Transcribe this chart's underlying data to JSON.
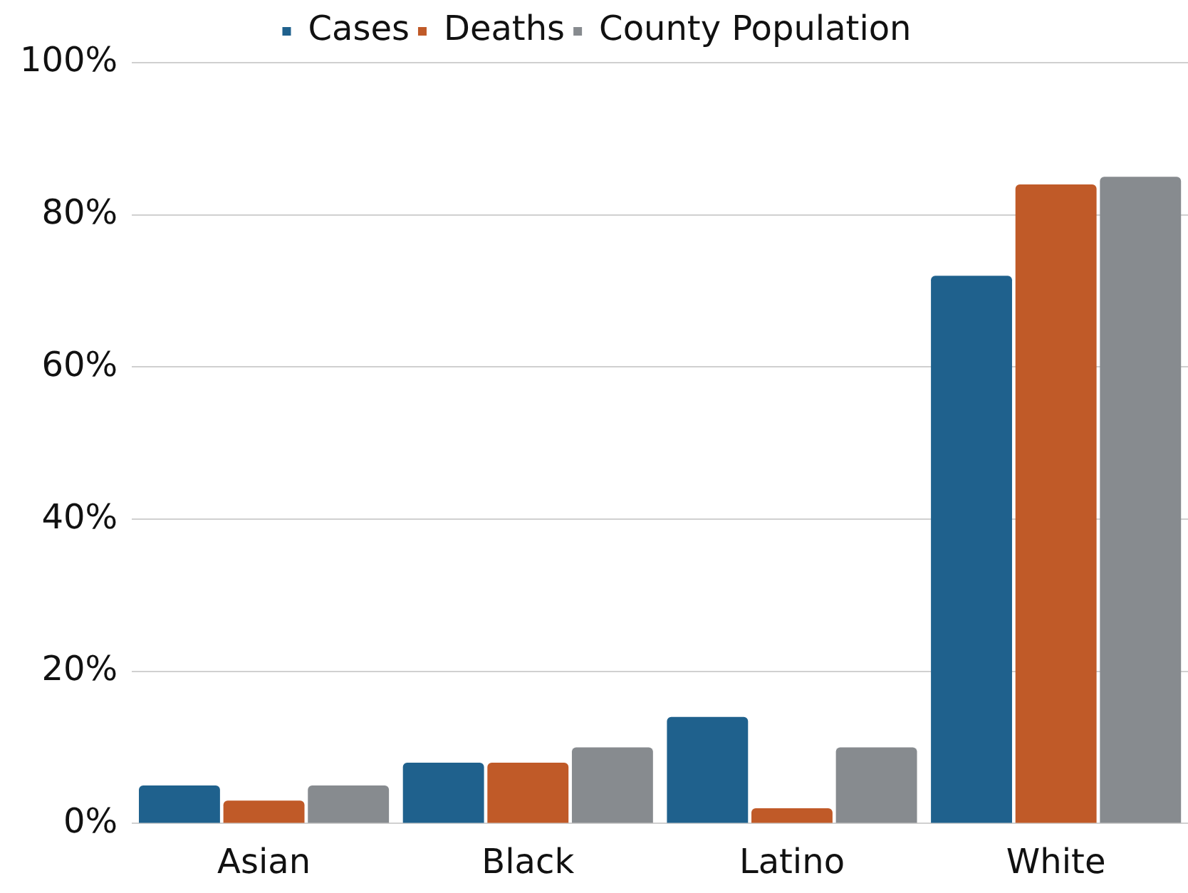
{
  "chart_data": {
    "type": "bar",
    "categories": [
      "Asian",
      "Black",
      "Latino",
      "White"
    ],
    "series": [
      {
        "name": "Cases",
        "color": "#1f618d",
        "values": [
          5,
          8,
          14,
          72
        ]
      },
      {
        "name": "Deaths",
        "color": "#c05a28",
        "values": [
          3,
          8,
          2,
          84
        ]
      },
      {
        "name": "County Population",
        "color": "#878b8f",
        "values": [
          5,
          10,
          10,
          85
        ]
      }
    ],
    "ylim": [
      0,
      100
    ],
    "yticks": [
      {
        "value": 0,
        "label": "0%"
      },
      {
        "value": 20,
        "label": "20%"
      },
      {
        "value": 40,
        "label": "40%"
      },
      {
        "value": 60,
        "label": "60%"
      },
      {
        "value": 80,
        "label": "80%"
      },
      {
        "value": 100,
        "label": "100%"
      }
    ],
    "grid": "y",
    "legend": "top"
  }
}
